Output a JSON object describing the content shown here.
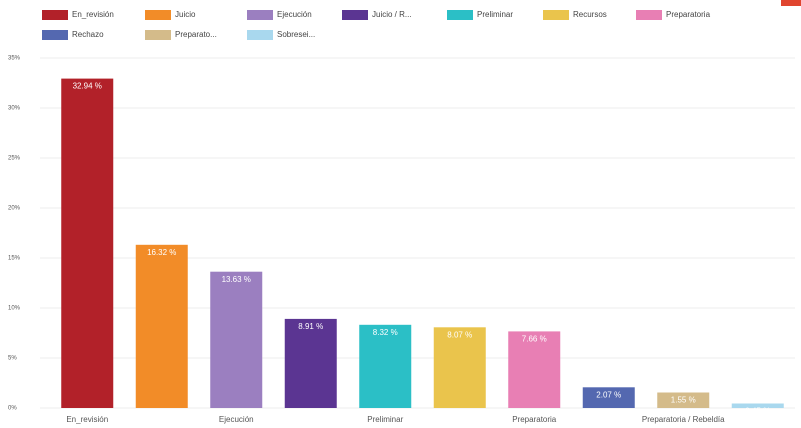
{
  "chart_data": {
    "type": "bar",
    "categories": [
      "En_revisión",
      null,
      "Ejecución",
      null,
      "Preliminar",
      null,
      "Preparatoria",
      null,
      "Preparatoria / Rebeldía",
      null
    ],
    "legend_labels": [
      "En_revisión",
      "Juicio",
      "Ejecución",
      "Juicio / R...",
      "Preliminar",
      "Recursos",
      "Preparatoria",
      "Rechazo",
      "Preparato...",
      "Sobresei..."
    ],
    "values": [
      32.94,
      16.32,
      13.63,
      8.91,
      8.32,
      8.07,
      7.66,
      2.07,
      1.55,
      0.45
    ],
    "value_labels": [
      "32.94 %",
      "16.32 %",
      "13.63 %",
      "8.91 %",
      "8.32 %",
      "8.07 %",
      "7.66 %",
      "2.07 %",
      "1.55 %",
      "0.45 %"
    ],
    "colors": [
      "#b22129",
      "#f28c28",
      "#9b7fc0",
      "#5b3592",
      "#2bbfc6",
      "#eac44c",
      "#e87fb4",
      "#5468b0",
      "#d4bb8a",
      "#a9d8ee"
    ],
    "ylim": [
      0,
      35
    ],
    "yticks": [
      {
        "value": 0,
        "label": "0%"
      },
      {
        "value": 5,
        "label": "5%"
      },
      {
        "value": 10,
        "label": "10%"
      },
      {
        "value": 15,
        "label": "15%"
      },
      {
        "value": 20,
        "label": "20%"
      },
      {
        "value": 25,
        "label": "25%"
      },
      {
        "value": 30,
        "label": "30%"
      },
      {
        "value": 35,
        "label": "35%"
      }
    ],
    "grid": true
  }
}
